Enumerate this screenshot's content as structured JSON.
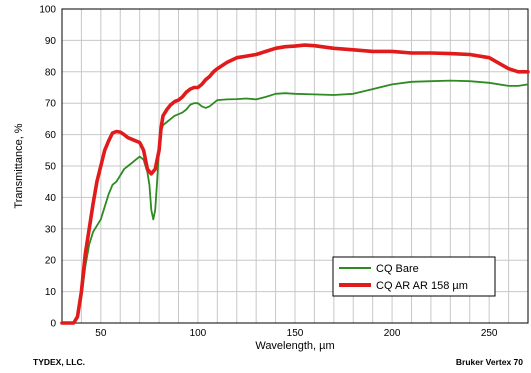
{
  "chart_data": {
    "type": "line",
    "xlabel": "Wavelength, µm",
    "ylabel": "Transmittance, %",
    "xlim": [
      30,
      270
    ],
    "ylim": [
      0,
      100
    ],
    "x_ticks": [
      50,
      100,
      150,
      200,
      250
    ],
    "y_ticks": [
      0,
      10,
      20,
      30,
      40,
      50,
      60,
      70,
      80,
      90,
      100
    ],
    "grid": true,
    "legend_position": "bottom-right",
    "series": [
      {
        "name": "CQ Bare",
        "color": "#2e8b22",
        "x": [
          30,
          36,
          38,
          40,
          42,
          44,
          46,
          48,
          50,
          52,
          54,
          56,
          58,
          60,
          62,
          64,
          66,
          68,
          70,
          72,
          74,
          75,
          76,
          77,
          78,
          79,
          80,
          81,
          82,
          84,
          86,
          88,
          90,
          92,
          94,
          96,
          98,
          100,
          102,
          104,
          106,
          108,
          110,
          115,
          120,
          125,
          130,
          135,
          140,
          145,
          150,
          160,
          170,
          180,
          190,
          200,
          210,
          220,
          230,
          240,
          250,
          260,
          265,
          270
        ],
        "y": [
          0,
          0,
          2,
          8,
          18,
          25,
          29,
          31,
          33,
          37,
          41,
          44,
          45,
          47,
          49,
          50,
          51,
          52,
          53,
          52,
          48,
          44,
          36,
          33,
          36,
          45,
          56,
          61,
          63,
          64,
          65,
          66,
          66.5,
          67,
          68,
          69.5,
          70,
          70,
          69,
          68.5,
          69,
          70,
          71,
          71.2,
          71.3,
          71.5,
          71.2,
          72,
          73,
          73.2,
          73,
          72.8,
          72.6,
          73,
          74.5,
          76,
          76.8,
          77,
          77.2,
          77,
          76.5,
          75.5,
          75.5,
          76
        ]
      },
      {
        "name": "CQ AR AR 158 µm",
        "color": "#e11b1b",
        "x": [
          30,
          36,
          38,
          40,
          42,
          44,
          46,
          48,
          50,
          52,
          54,
          56,
          58,
          60,
          62,
          64,
          66,
          68,
          70,
          72,
          74,
          76,
          78,
          80,
          81,
          82,
          84,
          86,
          88,
          90,
          92,
          94,
          96,
          98,
          100,
          102,
          104,
          106,
          108,
          110,
          115,
          120,
          125,
          130,
          135,
          140,
          145,
          150,
          155,
          160,
          170,
          180,
          190,
          200,
          210,
          220,
          230,
          240,
          250,
          260,
          265,
          270
        ],
        "y": [
          0,
          0,
          2,
          10,
          22,
          30,
          38,
          45,
          50,
          55,
          58,
          60.5,
          61,
          60.8,
          60,
          59,
          58.5,
          58,
          57.5,
          55,
          49,
          47.5,
          49,
          55,
          62,
          66,
          68,
          69.5,
          70.5,
          71,
          72,
          73.5,
          74.5,
          75,
          75,
          76,
          77.5,
          78.5,
          80,
          81,
          83,
          84.5,
          85,
          85.5,
          86.5,
          87.5,
          88,
          88.2,
          88.5,
          88.3,
          87.5,
          87,
          86.5,
          86.5,
          86,
          86,
          85.8,
          85.5,
          84.5,
          81,
          80,
          80
        ]
      }
    ]
  },
  "footer": {
    "left": "TYDEX, LLC.",
    "right": "Bruker Vertex 70"
  }
}
